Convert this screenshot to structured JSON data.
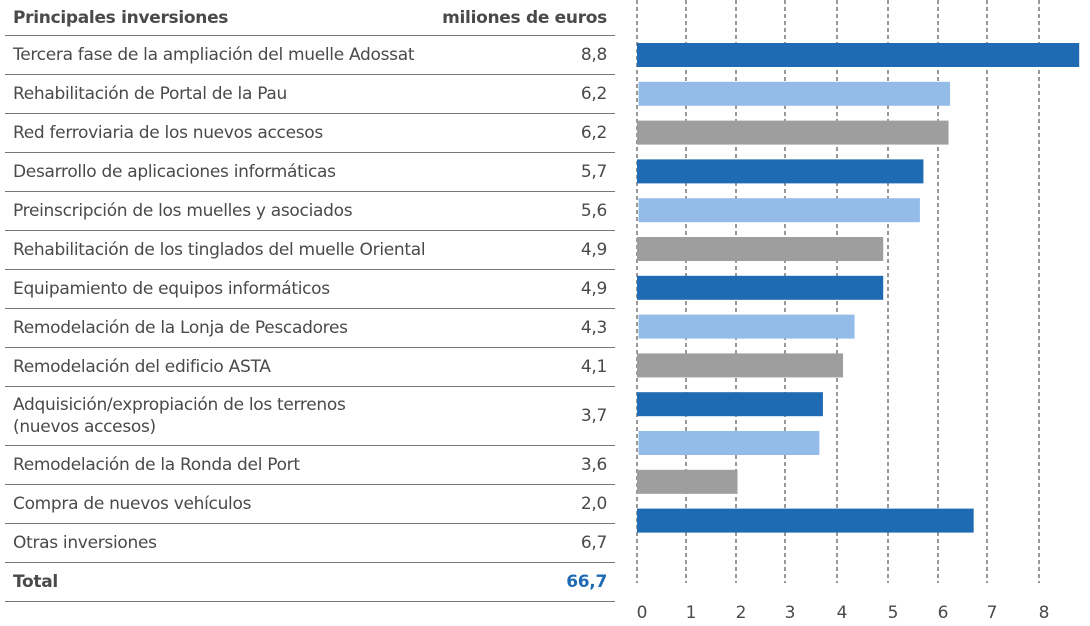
{
  "table": {
    "header_label": "Principales inversiones",
    "header_unit": "miliones de euros",
    "rows": [
      {
        "label": "Tercera fase de la ampliación del muelle Adossat",
        "value": "8,8"
      },
      {
        "label": "Rehabilitación de Portal de la Pau",
        "value": "6,2"
      },
      {
        "label": "Red ferroviaria de los nuevos accesos",
        "value": "6,2"
      },
      {
        "label": "Desarrollo de aplicaciones informáticas",
        "value": "5,7"
      },
      {
        "label": "Preinscripción de los muelles y asociados",
        "value": "5,6"
      },
      {
        "label": "Rehabilitación de los tinglados del muelle Oriental",
        "value": "4,9"
      },
      {
        "label": "Equipamiento de equipos informáticos",
        "value": "4,9"
      },
      {
        "label": "Remodelación de la Lonja de Pescadores",
        "value": "4,3"
      },
      {
        "label": "Remodelación del edificio ASTA",
        "value": "4,1"
      },
      {
        "label": "Adquisición/expropiación de los terrenos (nuevos accesos)",
        "value": "3,7"
      },
      {
        "label": "Remodelación de la Ronda del Port",
        "value": "3,6"
      },
      {
        "label": "Compra de nuevos vehículos",
        "value": "2,0"
      },
      {
        "label": "Otras inversiones",
        "value": "6,7"
      }
    ],
    "total_label": "Total",
    "total_value": "66,7"
  },
  "chart_data": {
    "type": "bar",
    "orientation": "horizontal",
    "categories": [
      "Tercera fase de la ampliación del muelle Adossat",
      "Rehabilitación de Portal de la Pau",
      "Red ferroviaria de los nuevos accesos",
      "Desarrollo de aplicaciones informáticas",
      "Preinscripción de los muelles y asociados",
      "Rehabilitación de los tinglados del muelle Oriental",
      "Equipamiento de equipos informáticos",
      "Remodelación de la Lonja de Pescadores",
      "Remodelación del edificio ASTA",
      "Adquisición/expropiación de los terrenos (nuevos accesos)",
      "Remodelación de la Ronda del Port",
      "Compra de nuevos vehículos",
      "Otras inversiones"
    ],
    "values": [
      8.8,
      6.2,
      6.2,
      5.7,
      5.6,
      4.9,
      4.9,
      4.3,
      4.1,
      3.7,
      3.6,
      2.0,
      6.7
    ],
    "xlim": [
      0,
      8.8
    ],
    "xticks": [
      "0",
      "1",
      "2",
      "3",
      "4",
      "5",
      "6",
      "7",
      "8"
    ],
    "grid": "vertical dashed",
    "colors": [
      "#1f6bb3",
      "#93bde8",
      "#9e9e9e"
    ]
  }
}
